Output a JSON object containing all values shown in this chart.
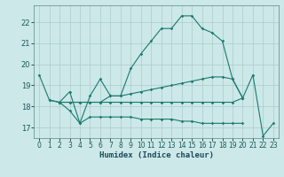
{
  "xlabel": "Humidex (Indice chaleur)",
  "line_main_x": [
    0,
    1,
    2,
    3,
    4,
    5,
    6,
    7,
    8,
    9,
    10,
    11,
    12,
    13,
    14,
    15,
    16,
    17,
    18,
    19,
    20,
    21,
    22,
    23
  ],
  "line_main_y": [
    19.5,
    18.3,
    18.2,
    18.7,
    17.2,
    18.5,
    19.3,
    18.5,
    18.5,
    19.8,
    20.5,
    21.1,
    21.7,
    21.7,
    22.3,
    22.3,
    21.7,
    21.5,
    21.1,
    19.3,
    18.4,
    19.5,
    16.6,
    17.2
  ],
  "line_upper_x": [
    2,
    3,
    4,
    5,
    6,
    7,
    8,
    9,
    10,
    11,
    12,
    13,
    14,
    15,
    16,
    17,
    18,
    19,
    20
  ],
  "line_upper_y": [
    18.2,
    18.2,
    18.2,
    18.2,
    18.2,
    18.5,
    18.5,
    18.6,
    18.7,
    18.8,
    18.9,
    19.0,
    19.1,
    19.2,
    19.3,
    19.4,
    19.4,
    19.3,
    18.4
  ],
  "line_flat_x": [
    1,
    2,
    3,
    4,
    5,
    6,
    7,
    8,
    9,
    10,
    11,
    12,
    13,
    14,
    15,
    16,
    17,
    18,
    19,
    20
  ],
  "line_flat_y": [
    18.3,
    18.2,
    18.2,
    18.2,
    18.2,
    18.2,
    18.2,
    18.2,
    18.2,
    18.2,
    18.2,
    18.2,
    18.2,
    18.2,
    18.2,
    18.2,
    18.2,
    18.2,
    18.2,
    18.4
  ],
  "line_lower_x": [
    2,
    3,
    4,
    5,
    6,
    7,
    8,
    9,
    10,
    11,
    12,
    13,
    14,
    15,
    16,
    17,
    18,
    19,
    20
  ],
  "line_lower_y": [
    18.2,
    17.8,
    17.2,
    17.5,
    17.5,
    17.5,
    17.5,
    17.5,
    17.4,
    17.4,
    17.4,
    17.4,
    17.3,
    17.3,
    17.2,
    17.2,
    17.2,
    17.2,
    17.2
  ],
  "line_color": "#1a7a6e",
  "bg_color": "#cce8e8",
  "grid_color": "#aacccc",
  "ylim": [
    16.5,
    22.8
  ],
  "yticks": [
    17,
    18,
    19,
    20,
    21,
    22
  ],
  "xticks": [
    0,
    1,
    2,
    3,
    4,
    5,
    6,
    7,
    8,
    9,
    10,
    11,
    12,
    13,
    14,
    15,
    16,
    17,
    18,
    19,
    20,
    21,
    22,
    23
  ]
}
